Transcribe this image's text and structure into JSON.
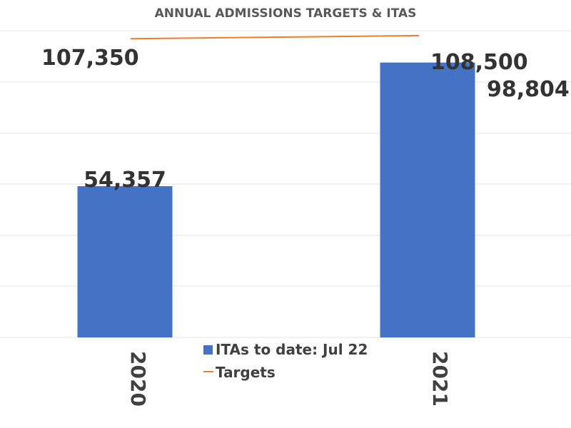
{
  "chart_data": {
    "type": "bar",
    "title": "ANNUAL ADMISSIONS TARGETS & ITAS",
    "xlabel": "",
    "ylabel": "",
    "categories": [
      "2020",
      "2021"
    ],
    "series": [
      {
        "name": "ITAs to date: Jul 22",
        "type": "bar",
        "values": [
          54357,
          98804
        ],
        "value_labels": [
          "54,357",
          "98,804"
        ],
        "color": "#4472C4"
      },
      {
        "name": "Targets",
        "type": "line",
        "values": [
          107350,
          108500
        ],
        "value_labels": [
          "107,350",
          "108,500"
        ],
        "color": "#ED7D31"
      }
    ],
    "ylim": [
      0,
      110000
    ],
    "grid": true,
    "legend": "bottom-center"
  }
}
